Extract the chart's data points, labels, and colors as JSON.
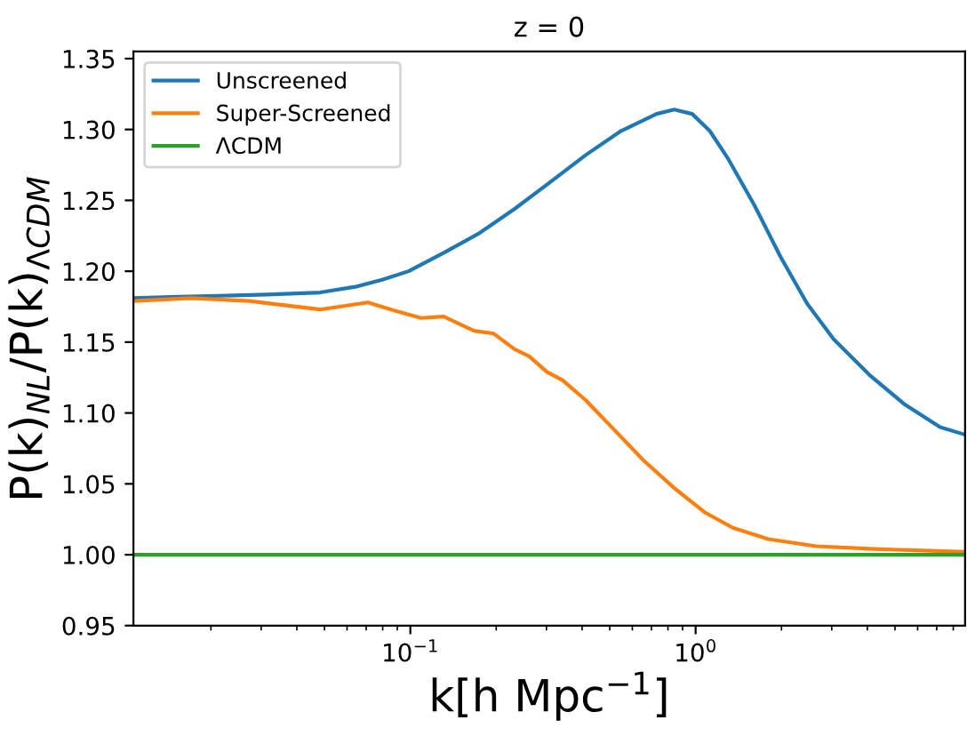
{
  "chart_data": {
    "type": "line",
    "title": "z = 0",
    "xlabel": "k[h Mpc$^{−1}$]",
    "ylabel": "P(k)$_{NL}$/P(k)$_{ΛCDM}$",
    "log": "x",
    "xlim": [
      0.0107,
      8.8
    ],
    "xticks": [
      {
        "value": 0.1,
        "label": "10$^{−1}$"
      },
      {
        "value": 1,
        "label": "10$^{0}$"
      }
    ],
    "ylim": [
      0.95,
      1.355
    ],
    "yticks": [
      {
        "value": 0.95,
        "label": "0.95"
      },
      {
        "value": 1.0,
        "label": "1.00"
      },
      {
        "value": 1.05,
        "label": "1.05"
      },
      {
        "value": 1.1,
        "label": "1.10"
      },
      {
        "value": 1.15,
        "label": "1.15"
      },
      {
        "value": 1.2,
        "label": "1.20"
      },
      {
        "value": 1.25,
        "label": "1.25"
      },
      {
        "value": 1.3,
        "label": "1.30"
      },
      {
        "value": 1.35,
        "label": "1.35"
      }
    ],
    "grid": false,
    "legend": "top left",
    "marker": "none",
    "line_style": "solid",
    "series": [
      {
        "name": "Unscreened",
        "color": "#1f77b4",
        "x": [
          0.0107,
          0.0154,
          0.0314,
          0.0482,
          0.0641,
          0.0796,
          0.0986,
          0.131,
          0.175,
          0.232,
          0.31,
          0.412,
          0.548,
          0.73,
          0.842,
          0.972,
          1.121,
          1.294,
          1.603,
          1.987,
          2.462,
          3.05,
          4.06,
          5.41,
          7.19,
          8.7
        ],
        "values": [
          1.181,
          1.182,
          1.1835,
          1.185,
          1.189,
          1.194,
          1.2,
          1.213,
          1.227,
          1.244,
          1.263,
          1.282,
          1.299,
          1.311,
          1.314,
          1.311,
          1.299,
          1.28,
          1.247,
          1.21,
          1.177,
          1.152,
          1.127,
          1.106,
          1.09,
          1.085
        ]
      },
      {
        "name": "Super-Screened",
        "color": "#ff7f0e",
        "x": [
          0.0107,
          0.017,
          0.0272,
          0.0482,
          0.071,
          0.0855,
          0.109,
          0.131,
          0.167,
          0.196,
          0.232,
          0.261,
          0.301,
          0.342,
          0.412,
          0.525,
          0.661,
          0.842,
          1.074,
          1.35,
          1.798,
          2.645,
          4.24,
          8.7
        ],
        "values": [
          1.179,
          1.181,
          1.179,
          1.173,
          1.178,
          1.173,
          1.167,
          1.168,
          1.158,
          1.156,
          1.145,
          1.14,
          1.129,
          1.123,
          1.109,
          1.087,
          1.066,
          1.047,
          1.03,
          1.019,
          1.011,
          1.006,
          1.004,
          1.002
        ]
      },
      {
        "name": "ΛCDM",
        "color": "#2ca02c",
        "x": [
          0.0107,
          8.8
        ],
        "values": [
          1.0,
          1.0
        ]
      }
    ]
  }
}
